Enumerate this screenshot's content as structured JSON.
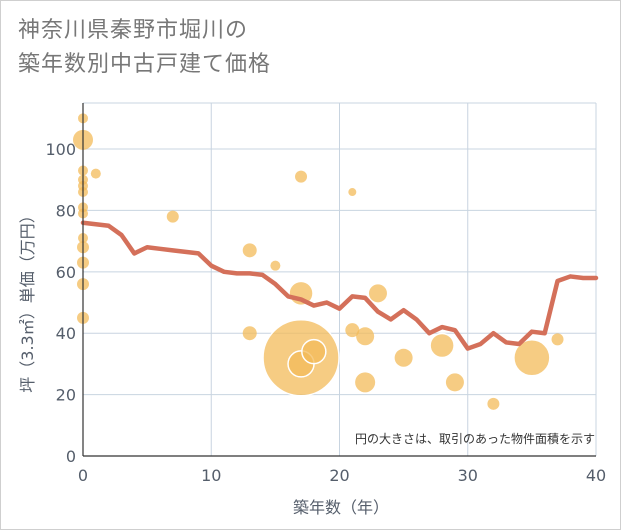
{
  "title": {
    "line1": "神奈川県秦野市堀川の",
    "line2": "築年数別中古戸建て価格"
  },
  "colors": {
    "line": "#d4705a",
    "bubble": "#f3bb5a",
    "grid": "#c8d4e0",
    "axis_text": "#555e6b"
  },
  "chart_data": {
    "type": "scatter",
    "xlabel": "築年数（年）",
    "ylabel": "坪（3.3㎡）単価（万円）",
    "xlim": [
      0,
      40
    ],
    "ylim": [
      0,
      115
    ],
    "xticks": [
      0,
      10,
      20,
      30,
      40
    ],
    "yticks": [
      0,
      20,
      40,
      60,
      80,
      100
    ],
    "grid": true,
    "note": "円の大きさは、取引のあった物件面積を示す",
    "series": [
      {
        "kind": "bubble",
        "points": [
          {
            "x": 0,
            "y": 110,
            "r": 5
          },
          {
            "x": 0,
            "y": 103,
            "r": 10
          },
          {
            "x": 0,
            "y": 93,
            "r": 5
          },
          {
            "x": 0,
            "y": 90,
            "r": 5
          },
          {
            "x": 0,
            "y": 88,
            "r": 5
          },
          {
            "x": 0,
            "y": 86,
            "r": 5
          },
          {
            "x": 0,
            "y": 81,
            "r": 5
          },
          {
            "x": 0,
            "y": 79,
            "r": 5
          },
          {
            "x": 0,
            "y": 71,
            "r": 5
          },
          {
            "x": 0,
            "y": 68,
            "r": 6
          },
          {
            "x": 0,
            "y": 63,
            "r": 6
          },
          {
            "x": 0,
            "y": 56,
            "r": 6
          },
          {
            "x": 0,
            "y": 45,
            "r": 6
          },
          {
            "x": 1,
            "y": 92,
            "r": 5
          },
          {
            "x": 7,
            "y": 78,
            "r": 6
          },
          {
            "x": 13,
            "y": 67,
            "r": 7
          },
          {
            "x": 13,
            "y": 40,
            "r": 7
          },
          {
            "x": 15,
            "y": 62,
            "r": 5
          },
          {
            "x": 17,
            "y": 91,
            "r": 6
          },
          {
            "x": 17,
            "y": 53,
            "r": 12
          },
          {
            "x": 17,
            "y": 32,
            "r": 38
          },
          {
            "x": 17,
            "y": 30,
            "r": 13
          },
          {
            "x": 18,
            "y": 34,
            "r": 12
          },
          {
            "x": 21,
            "y": 86,
            "r": 4
          },
          {
            "x": 21,
            "y": 41,
            "r": 7
          },
          {
            "x": 22,
            "y": 39,
            "r": 9
          },
          {
            "x": 22,
            "y": 24,
            "r": 10
          },
          {
            "x": 23,
            "y": 53,
            "r": 9
          },
          {
            "x": 25,
            "y": 32,
            "r": 9
          },
          {
            "x": 28,
            "y": 36,
            "r": 12
          },
          {
            "x": 29,
            "y": 24,
            "r": 9
          },
          {
            "x": 32,
            "y": 17,
            "r": 6
          },
          {
            "x": 35,
            "y": 32,
            "r": 18
          },
          {
            "x": 37,
            "y": 38,
            "r": 6
          }
        ]
      },
      {
        "kind": "line",
        "x": [
          0,
          1,
          2,
          3,
          4,
          5,
          6,
          7,
          8,
          9,
          10,
          11,
          12,
          13,
          14,
          15,
          16,
          17,
          18,
          19,
          20,
          21,
          22,
          23,
          24,
          25,
          26,
          27,
          28,
          29,
          30,
          31,
          32,
          33,
          34,
          35,
          36,
          37,
          38,
          39,
          40
        ],
        "y": [
          76,
          75.5,
          75,
          72,
          66,
          68,
          67.5,
          67,
          66.5,
          66,
          62,
          60,
          59.5,
          59.5,
          59,
          56,
          52,
          51,
          49,
          50,
          48,
          52,
          51.5,
          47,
          44.5,
          47.5,
          44.5,
          40,
          42,
          41,
          35,
          36.5,
          40,
          37,
          36.5,
          40.5,
          40,
          57,
          58.5,
          58,
          58
        ]
      }
    ]
  }
}
